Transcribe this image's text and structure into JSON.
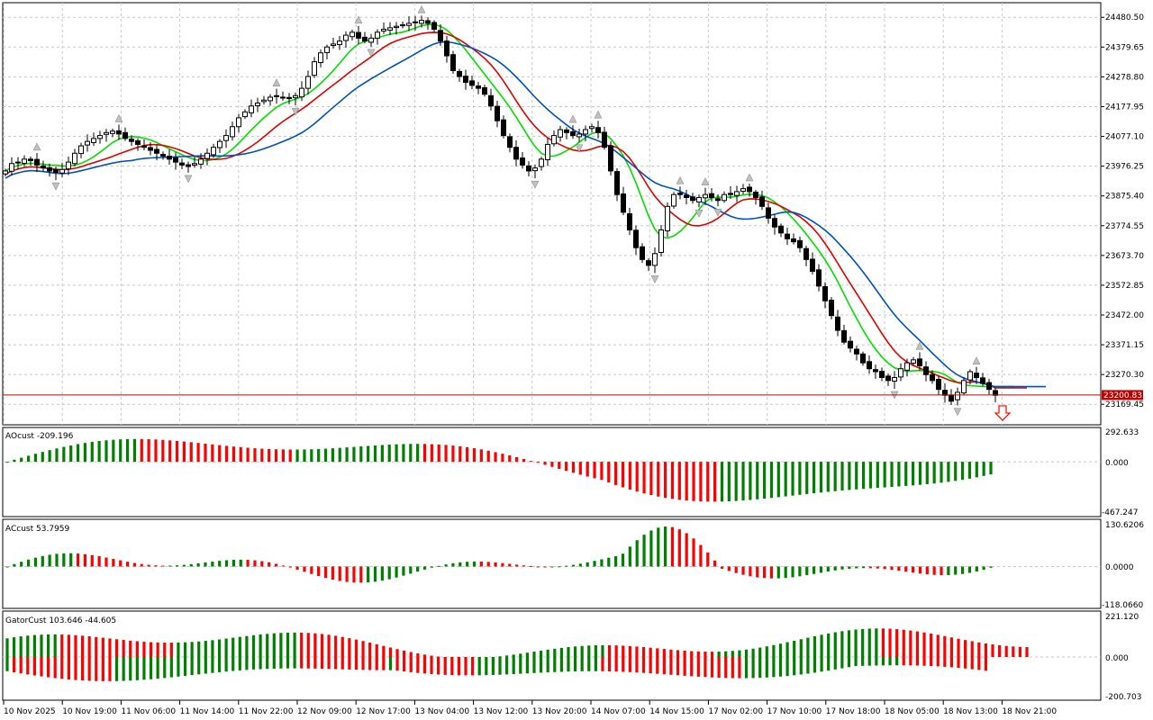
{
  "chart_data": {
    "type": "candlestick",
    "symbol_timeframe": "H1",
    "current_price": "23200.83",
    "price_axis": {
      "ylim": [
        23100,
        24530
      ],
      "ticks": [
        "24480.50",
        "24379.65",
        "24278.80",
        "24177.95",
        "24077.10",
        "23976.25",
        "23875.40",
        "23774.55",
        "23673.70",
        "23572.85",
        "23472.00",
        "23371.15",
        "23270.30",
        "23169.45"
      ]
    },
    "time_axis": {
      "labels": [
        "10 Nov 2025",
        "10 Nov 19:00",
        "11 Nov 06:00",
        "11 Nov 14:00",
        "11 Nov 22:00",
        "12 Nov 09:00",
        "12 Nov 17:00",
        "13 Nov 04:00",
        "13 Nov 12:00",
        "13 Nov 20:00",
        "14 Nov 07:00",
        "14 Nov 15:00",
        "17 Nov 02:00",
        "17 Nov 10:00",
        "17 Nov 18:00",
        "18 Nov 05:00",
        "18 Nov 13:00",
        "18 Nov 21:00"
      ]
    },
    "candles_close_path": [
      23960,
      23985,
      23990,
      24000,
      23995,
      23980,
      23970,
      23960,
      23955,
      23965,
      23990,
      24020,
      24045,
      24060,
      24070,
      24080,
      24090,
      24095,
      24085,
      24070,
      24060,
      24050,
      24040,
      24030,
      24020,
      24010,
      24000,
      23990,
      23980,
      23975,
      23985,
      24000,
      24020,
      24040,
      24060,
      24080,
      24110,
      24140,
      24160,
      24180,
      24190,
      24200,
      24210,
      24215,
      24210,
      24205,
      24215,
      24240,
      24280,
      24330,
      24360,
      24380,
      24390,
      24400,
      24420,
      24430,
      24410,
      24400,
      24410,
      24430,
      24440,
      24445,
      24450,
      24455,
      24460,
      24465,
      24470,
      24460,
      24440,
      24400,
      24350,
      24300,
      24280,
      24260,
      24250,
      24240,
      24220,
      24180,
      24130,
      24080,
      24040,
      24000,
      23980,
      23960,
      23970,
      24000,
      24050,
      24080,
      24100,
      24090,
      24080,
      24085,
      24100,
      24110,
      24090,
      24040,
      23960,
      23880,
      23820,
      23760,
      23700,
      23660,
      23640,
      23680,
      23760,
      23840,
      23880,
      23880,
      23870,
      23860,
      23870,
      23880,
      23870,
      23860,
      23880,
      23880,
      23890,
      23900,
      23890,
      23870,
      23840,
      23800,
      23770,
      23750,
      23730,
      23720,
      23700,
      23660,
      23620,
      23570,
      23520,
      23470,
      23420,
      23380,
      23360,
      23340,
      23310,
      23290,
      23280,
      23260,
      23250,
      23260,
      23290,
      23310,
      23320,
      23300,
      23270,
      23250,
      23220,
      23200,
      23180,
      23210,
      23250,
      23280,
      23260,
      23240,
      23220,
      23200
    ],
    "moving_averages": [
      {
        "color": "#00e000"
      },
      {
        "color": "#e00000"
      },
      {
        "color": "#0050c0"
      }
    ],
    "indicators": [
      {
        "name": "AOcust",
        "value": "-209.196",
        "scale_top": "292.633",
        "scale_zero": "0.000",
        "scale_bottom": "-467.247",
        "ylim": [
          -467.247,
          292.633
        ]
      },
      {
        "name": "ACcust",
        "value": "53.7959",
        "scale_top": "130.6206",
        "scale_zero": "0.0000",
        "scale_bottom": "-118.0660",
        "ylim": [
          -118.066,
          130.6206
        ]
      },
      {
        "name": "GatorCust",
        "value": "103.646 -44.605",
        "scale_top": "221.120",
        "scale_zero": "0.000",
        "scale_bottom": "-200.703",
        "ylim": [
          -200.703,
          221.12
        ]
      }
    ],
    "colors": {
      "up": "#008000",
      "down": "#ff0000",
      "bull_candle": "#ffffff",
      "bear_candle": "#000000",
      "grid": "#c8c8c8",
      "price_line": "#c00000"
    }
  }
}
